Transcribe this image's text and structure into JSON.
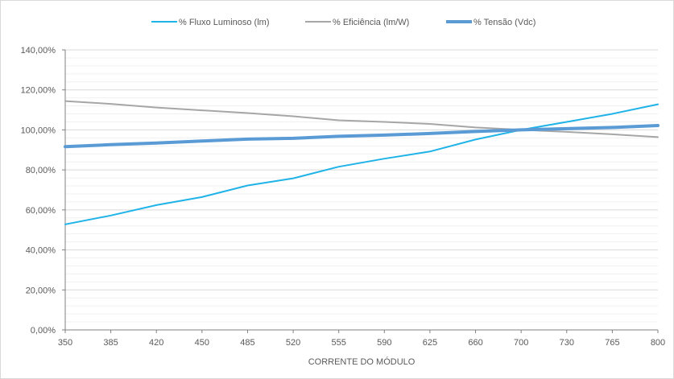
{
  "chart_data": {
    "type": "line",
    "title": "",
    "xlabel": "CORRENTE DO MÓDULO",
    "ylabel": "",
    "categories": [
      "350",
      "385",
      "420",
      "450",
      "485",
      "520",
      "555",
      "590",
      "625",
      "660",
      "700",
      "730",
      "765",
      "800"
    ],
    "ylim": [
      0,
      140
    ],
    "yticks": [
      0,
      20,
      40,
      60,
      80,
      100,
      120,
      140
    ],
    "ytick_labels": [
      "0,00%",
      "20,00%",
      "40,00%",
      "60,00%",
      "80,00%",
      "100,00%",
      "120,00%",
      "140,00%"
    ],
    "minor_grid_step": 4,
    "grid": true,
    "legend_position": "top",
    "series": [
      {
        "name": "% Fluxo Luminoso (lm)",
        "color": "#1fb3e8",
        "line": "thin",
        "values": [
          52.8,
          57.2,
          62.4,
          66.4,
          72.2,
          75.8,
          81.6,
          85.6,
          89.2,
          95.2,
          100.0,
          104.0,
          108.0,
          112.8
        ]
      },
      {
        "name": "% Eficiência (lm/W)",
        "color": "#a6a6a6",
        "line": "thin",
        "values": [
          114.4,
          113.0,
          111.2,
          109.8,
          108.4,
          106.8,
          104.8,
          104.0,
          103.0,
          101.2,
          100.0,
          99.0,
          97.8,
          96.4
        ]
      },
      {
        "name": "% Tensão (Vdc)",
        "color": "#5b9bd5",
        "line": "thick",
        "values": [
          91.6,
          92.6,
          93.4,
          94.4,
          95.4,
          95.8,
          96.8,
          97.4,
          98.2,
          99.2,
          100.0,
          100.6,
          101.2,
          102.2
        ]
      }
    ]
  }
}
